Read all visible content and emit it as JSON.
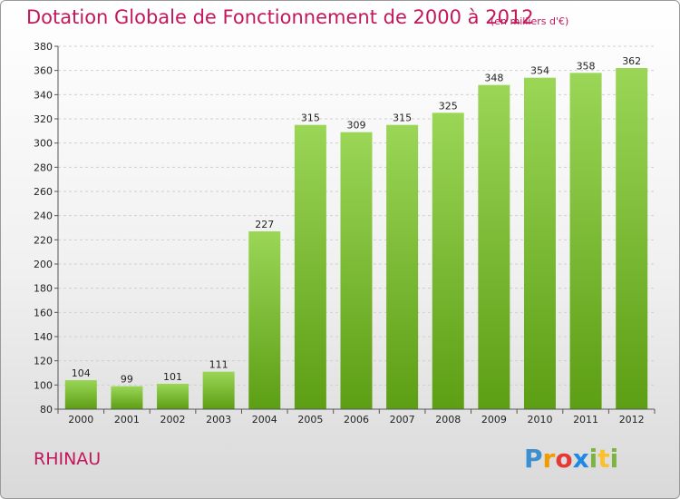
{
  "title": "Dotation Globale de Fonctionnement de 2000 à 2012",
  "subtitle": "(en milliers d'€)",
  "commune": "RHINAU",
  "logo": "Proxiti",
  "chart_data": {
    "type": "bar",
    "title": "Dotation Globale de Fonctionnement de 2000 à 2012",
    "subtitle": "(en milliers d'€)",
    "categories": [
      "2000",
      "2001",
      "2002",
      "2003",
      "2004",
      "2005",
      "2006",
      "2007",
      "2008",
      "2009",
      "2010",
      "2011",
      "2012"
    ],
    "values": [
      104,
      99,
      101,
      111,
      227,
      315,
      309,
      315,
      325,
      348,
      354,
      358,
      362
    ],
    "ylim": [
      80,
      380
    ],
    "yticks": [
      80,
      100,
      120,
      140,
      160,
      180,
      200,
      220,
      240,
      260,
      280,
      300,
      320,
      340,
      360,
      380
    ],
    "grid": true,
    "bar_color": "#7cc23a"
  }
}
